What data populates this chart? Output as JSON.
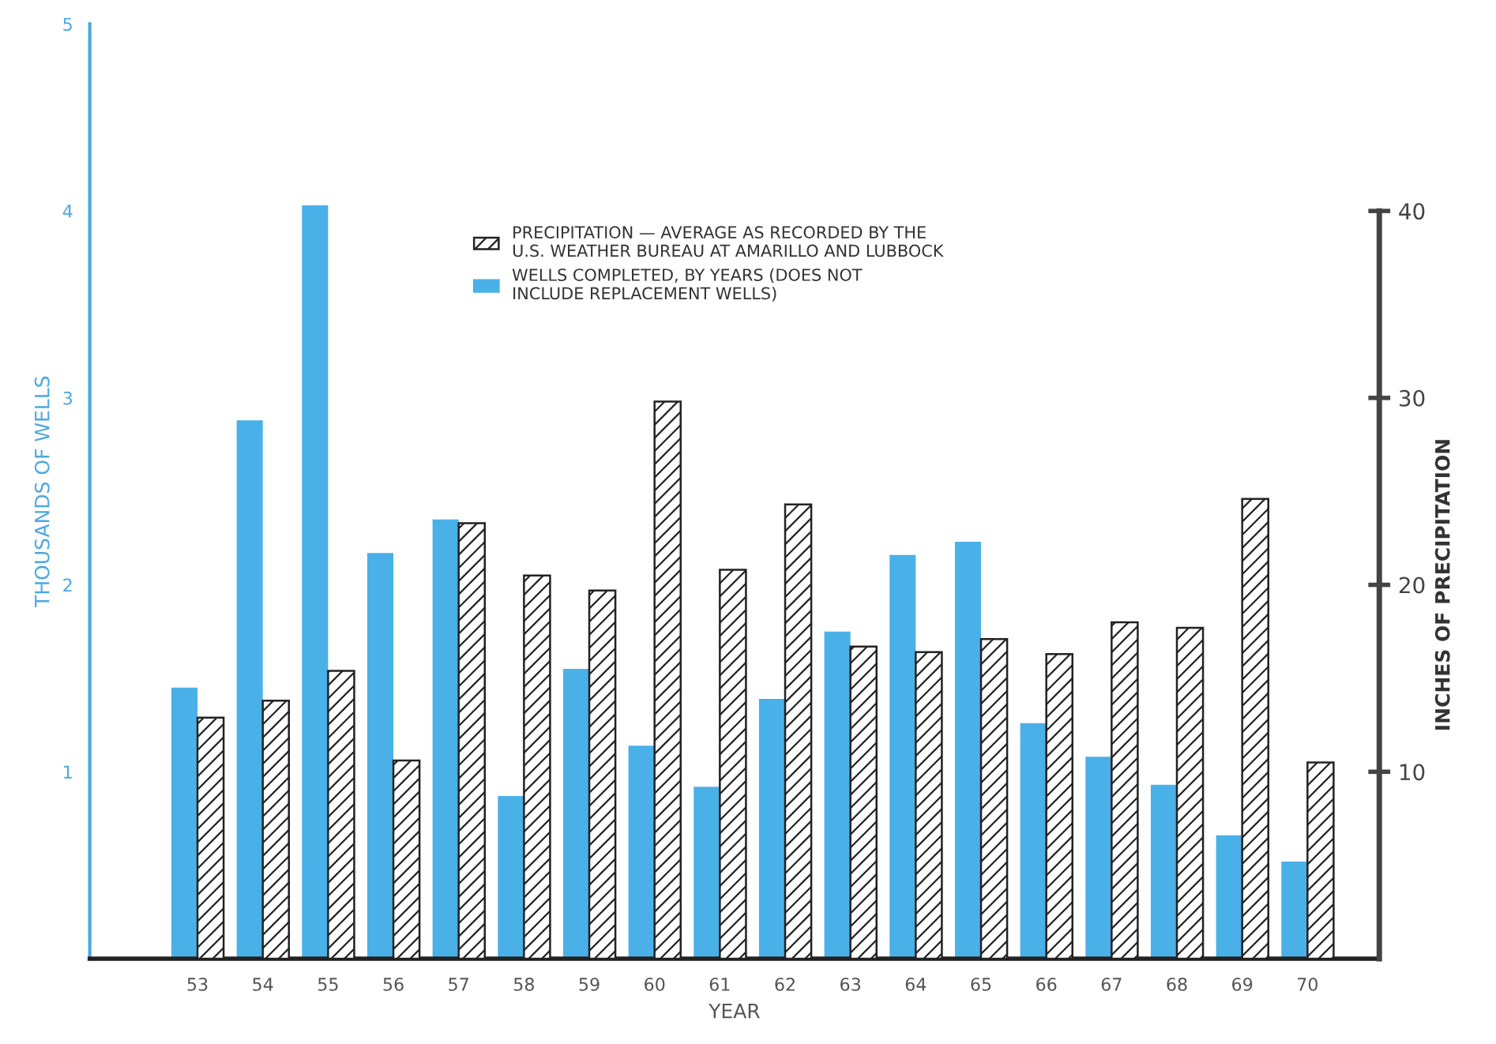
{
  "chart_data": {
    "type": "bar",
    "xlabel": "YEAR",
    "ylabel": "THOUSANDS OF WELLS",
    "y2label": "INCHES OF PRECIPITATION",
    "categories": [
      "53",
      "54",
      "55",
      "56",
      "57",
      "58",
      "59",
      "60",
      "61",
      "62",
      "63",
      "64",
      "65",
      "66",
      "67",
      "68",
      "69",
      "70"
    ],
    "series": [
      {
        "name": "WELLS COMPLETED, BY YEARS (DOES NOT\nINCLUDE REPLACEMENT WELLS)",
        "color": "#4ab0e8",
        "values": [
          1.45,
          2.88,
          4.03,
          2.17,
          2.35,
          0.87,
          1.55,
          1.14,
          0.92,
          1.39,
          1.75,
          2.16,
          2.23,
          1.26,
          1.08,
          0.93,
          0.66,
          0.52
        ]
      },
      {
        "name": "PRECIPITATION — AVERAGE AS RECORDED BY THE\nU.S. WEATHER BUREAU AT AMARILLO AND LUBBOCK",
        "color": "#222222",
        "axis": "y2",
        "values": [
          12.9,
          13.8,
          15.4,
          10.6,
          23.3,
          20.5,
          19.7,
          29.8,
          20.8,
          24.3,
          16.7,
          16.4,
          17.1,
          16.3,
          18.0,
          17.7,
          24.6,
          10.5
        ]
      }
    ],
    "ylim": [
      0,
      5
    ],
    "yticks": [
      1,
      2,
      3,
      4,
      5
    ],
    "y2lim": [
      0,
      40
    ],
    "y2ticks": [
      10,
      20,
      30,
      40
    ],
    "legend": "top",
    "grid": false
  }
}
